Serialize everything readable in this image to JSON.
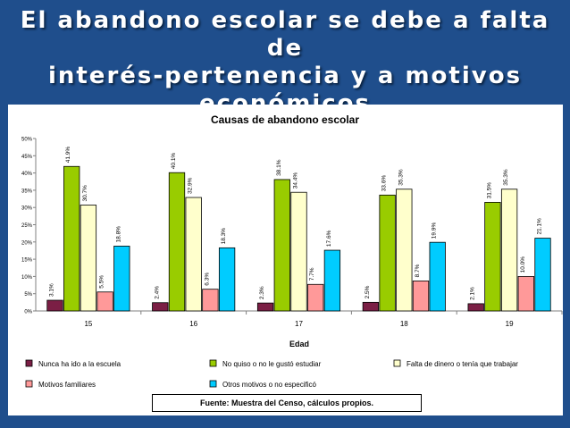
{
  "slide": {
    "title_line1": "El abandono escolar se debe a falta de",
    "title_line2": "interés-pertenencia y a motivos",
    "title_line3": "económicos",
    "source": "Fuente: Muestra del Censo, cálculos propios."
  },
  "colors": {
    "background": "#1f4e8c",
    "nunca": "#7b1f45",
    "no_quiso": "#99cc00",
    "falta_dinero": "#ffffcc",
    "familiares": "#ff9999",
    "otros": "#00ccff"
  },
  "chart_data": {
    "type": "bar",
    "title": "Causas de abandono escolar",
    "xlabel": "Edad",
    "ylabel": "",
    "ylim": [
      0,
      50
    ],
    "yticks": [
      "0%",
      "5%",
      "10%",
      "15%",
      "20%",
      "25%",
      "30%",
      "35%",
      "40%",
      "45%",
      "50%"
    ],
    "grid": false,
    "legend_position": "bottom",
    "categories": [
      "15",
      "16",
      "17",
      "18",
      "19"
    ],
    "series": [
      {
        "name": "Nunca ha ido a la escuela",
        "color": "#7b1f45",
        "values": [
          3.1,
          2.4,
          2.3,
          2.5,
          2.1
        ],
        "labels": [
          "3.1%",
          "2.4%",
          "2.3%",
          "2.5%",
          "2.1%"
        ]
      },
      {
        "name": "No quiso o no le gustó estudiar",
        "color": "#99cc00",
        "values": [
          41.9,
          40.1,
          38.1,
          33.6,
          31.5
        ],
        "labels": [
          "41.9%",
          "40.1%",
          "38.1%",
          "33.6%",
          "31.5%"
        ]
      },
      {
        "name": "Falta de dinero o tenía que trabajar",
        "color": "#ffffcc",
        "values": [
          30.7,
          32.9,
          34.4,
          35.3,
          35.3
        ],
        "labels": [
          "30.7%",
          "32.9%",
          "34.4%",
          "35.3%",
          "35.3%"
        ]
      },
      {
        "name": "Motivos familiares",
        "color": "#ff9999",
        "values": [
          5.5,
          6.3,
          7.7,
          8.7,
          10.0
        ],
        "labels": [
          "5.5%",
          "6.3%",
          "7.7%",
          "8.7%",
          "10.0%"
        ]
      },
      {
        "name": "Otros motivos o no especificó",
        "color": "#00ccff",
        "values": [
          18.8,
          18.3,
          17.6,
          19.9,
          21.1
        ],
        "labels": [
          "18.8%",
          "18.3%",
          "17.6%",
          "19.9%",
          "21.1%"
        ]
      }
    ]
  }
}
